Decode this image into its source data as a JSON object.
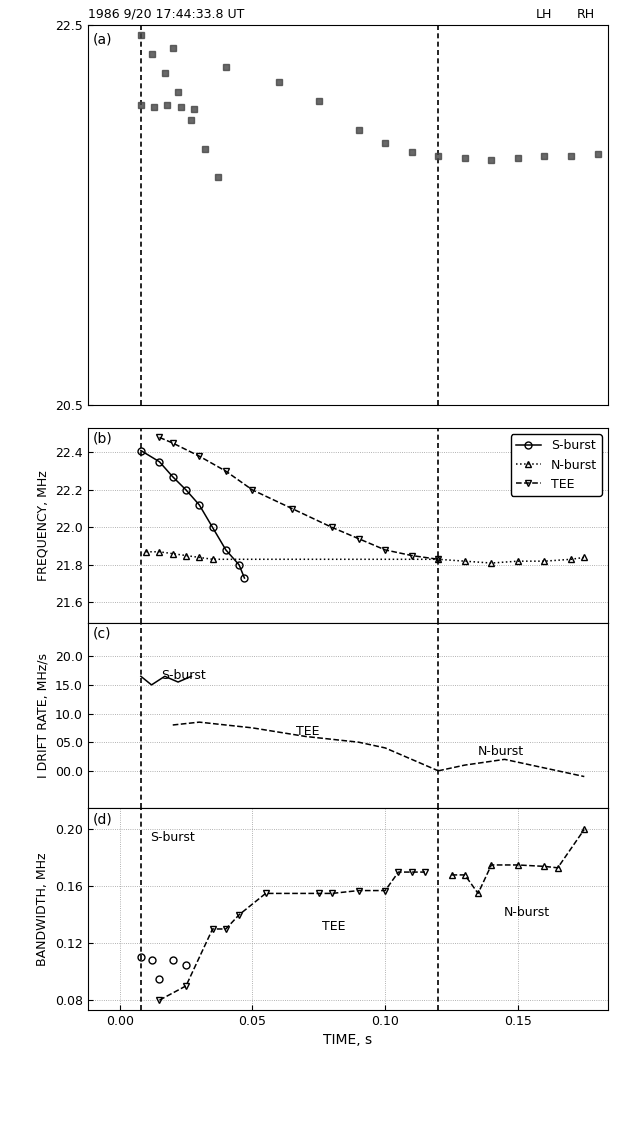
{
  "chart_data": [
    {
      "type": "scatter",
      "panel": "(a)",
      "title": "1986 9/20 17:44:33.8 UT",
      "annotations": [
        {
          "text": "LH"
        },
        {
          "text": "RH"
        }
      ],
      "xlim": [
        -0.012,
        0.184
      ],
      "ylim": [
        20.5,
        22.5
      ],
      "yticks": [
        20.5,
        22.5
      ],
      "tick_labels": "y",
      "grid": false,
      "time_markers": [
        0.008,
        0.12
      ],
      "series": [
        {
          "name": "S-burst",
          "color": "#444444",
          "marker": "s",
          "line_style": "none",
          "x": [
            0.008,
            0.012,
            0.017,
            0.022,
            0.027,
            0.032,
            0.037
          ],
          "values": [
            22.45,
            22.35,
            22.25,
            22.15,
            22.0,
            21.85,
            21.7
          ]
        },
        {
          "name": "N-burst",
          "color": "#444444",
          "marker": "s",
          "line_style": "none",
          "x": [
            0.008,
            0.013,
            0.018,
            0.023,
            0.028
          ],
          "values": [
            22.08,
            22.07,
            22.08,
            22.07,
            22.06
          ]
        },
        {
          "name": "TEE",
          "color": "#444444",
          "marker": "s",
          "line_style": "none",
          "x": [
            0.02,
            0.04,
            0.06,
            0.075,
            0.09,
            0.1,
            0.11,
            0.12,
            0.13,
            0.14,
            0.15,
            0.16,
            0.17,
            0.18
          ],
          "values": [
            22.38,
            22.28,
            22.2,
            22.1,
            21.95,
            21.88,
            21.83,
            21.81,
            21.8,
            21.79,
            21.8,
            21.81,
            21.81,
            21.82
          ]
        }
      ]
    },
    {
      "type": "line",
      "panel": "(b)",
      "y_label": "FREQUENCY, MHz",
      "xlim": [
        -0.012,
        0.184
      ],
      "ylim": [
        21.49,
        22.53
      ],
      "yticks": [
        21.6,
        21.8,
        22.0,
        22.2,
        22.4
      ],
      "tick_labels": "y",
      "grid": true,
      "legend": "upper right",
      "time_markers": [
        0.008,
        0.12
      ],
      "series": [
        {
          "name": "S-burst",
          "color": "#000000",
          "marker": "o",
          "line_style": "solid",
          "x": [
            0.008,
            0.015,
            0.02,
            0.025,
            0.03,
            0.035,
            0.04,
            0.045,
            0.047
          ],
          "values": [
            22.41,
            22.35,
            22.27,
            22.2,
            22.12,
            22.0,
            21.88,
            21.8,
            21.73
          ]
        },
        {
          "name": "N-burst",
          "color": "#000000",
          "marker": "^",
          "line_style": "dotted",
          "x": [
            0.01,
            0.015,
            0.02,
            0.025,
            0.03,
            0.035,
            0.12,
            0.13,
            0.14,
            0.15,
            0.16,
            0.17,
            0.175
          ],
          "values": [
            21.87,
            21.87,
            21.86,
            21.85,
            21.84,
            21.83,
            21.83,
            21.82,
            21.81,
            21.82,
            21.82,
            21.83,
            21.84
          ]
        },
        {
          "name": "TEE",
          "color": "#000000",
          "marker": "v",
          "line_style": "dashed",
          "x": [
            0.015,
            0.02,
            0.03,
            0.04,
            0.05,
            0.065,
            0.08,
            0.09,
            0.1,
            0.11,
            0.12
          ],
          "values": [
            22.48,
            22.45,
            22.38,
            22.3,
            22.2,
            22.1,
            22.0,
            21.94,
            21.88,
            21.85,
            21.83
          ]
        }
      ]
    },
    {
      "type": "line",
      "panel": "(c)",
      "y_label": "I DRIFT RATE, MHz/s",
      "annotations": [
        {
          "text": "S-burst"
        },
        {
          "text": "TEE"
        },
        {
          "text": "N-burst"
        }
      ],
      "xlim": [
        -0.012,
        0.184
      ],
      "ylim": [
        -6.5,
        25.8
      ],
      "yticks": [
        {
          "value": 0.0,
          "label": "00.0"
        },
        {
          "value": 5.0,
          "label": "05.0"
        },
        10.0,
        15.0,
        20.0
      ],
      "tick_labels": "y",
      "grid": true,
      "time_markers": [
        0.008,
        0.12
      ],
      "series": [
        {
          "name": "S-burst",
          "color": "#000000",
          "line_style": "solid",
          "x": [
            0.008,
            0.012,
            0.017,
            0.022,
            0.027
          ],
          "values": [
            16.5,
            15.0,
            16.5,
            15.5,
            16.5
          ]
        },
        {
          "name": "TEE",
          "color": "#000000",
          "line_style": "dashed",
          "x": [
            0.02,
            0.03,
            0.05,
            0.07,
            0.09,
            0.1,
            0.11,
            0.12
          ],
          "values": [
            8.0,
            8.5,
            7.5,
            6.0,
            5.0,
            4.0,
            2.0,
            0.0
          ]
        },
        {
          "name": "N-burst",
          "color": "#000000",
          "line_style": "dashed",
          "x": [
            0.12,
            0.13,
            0.145,
            0.16,
            0.175
          ],
          "values": [
            0.0,
            1.0,
            2.0,
            0.5,
            -1.0
          ]
        }
      ]
    },
    {
      "type": "scatter",
      "panel": "(d)",
      "y_label": "BANDWIDTH, MHz",
      "x_label": "TIME, s",
      "annotations": [
        {
          "text": "S-burst"
        },
        {
          "text": "TEE"
        },
        {
          "text": "N-burst"
        }
      ],
      "xlim": [
        -0.012,
        0.184
      ],
      "ylim": [
        0.073,
        0.215
      ],
      "xticks": [
        {
          "value": 0.0,
          "label": "0.00"
        },
        0.05,
        {
          "value": 0.1,
          "label": "0.10"
        },
        0.15
      ],
      "yticks": [
        0.08,
        0.12,
        0.16,
        {
          "value": 0.2,
          "label": "0.20"
        }
      ],
      "grid": true,
      "time_markers": [
        0.008,
        0.12
      ],
      "series": [
        {
          "name": "S-burst",
          "color": "#000000",
          "marker": "o",
          "line_style": "none",
          "x": [
            0.008,
            0.012,
            0.015,
            0.02,
            0.025
          ],
          "values": [
            0.11,
            0.108,
            0.095,
            0.108,
            0.105
          ]
        },
        {
          "name": "TEE",
          "color": "#000000",
          "marker": "v",
          "line_style": "dashed",
          "x": [
            0.015,
            0.025,
            0.035,
            0.04,
            0.045,
            0.055,
            0.075,
            0.08,
            0.09,
            0.1,
            0.105,
            0.11,
            0.115
          ],
          "values": [
            0.08,
            0.09,
            0.13,
            0.13,
            0.14,
            0.155,
            0.155,
            0.155,
            0.157,
            0.157,
            0.17,
            0.17,
            0.17
          ]
        },
        {
          "name": "N-burst",
          "color": "#000000",
          "marker": "^",
          "line_style": "dashed",
          "x": [
            0.125,
            0.13,
            0.135,
            0.14,
            0.15,
            0.16,
            0.165,
            0.175
          ],
          "values": [
            0.168,
            0.168,
            0.155,
            0.175,
            0.175,
            0.174,
            0.173,
            0.2
          ]
        }
      ]
    }
  ]
}
